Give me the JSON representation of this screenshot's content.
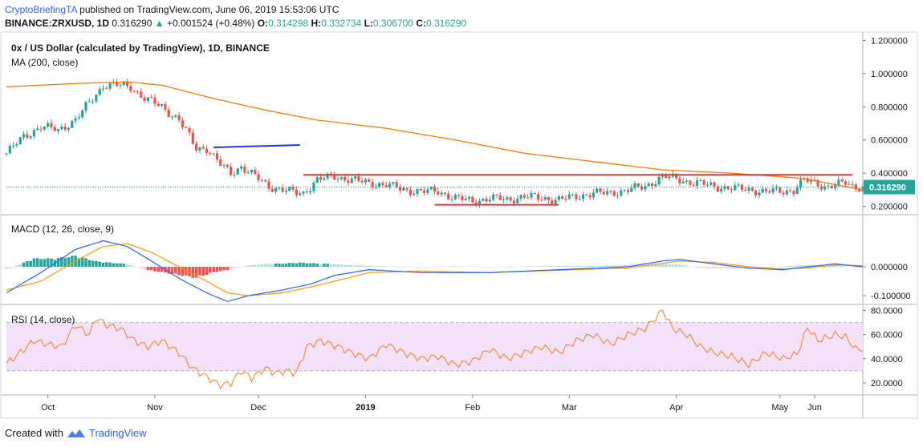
{
  "header": {
    "author": "CryptoBriefingTA",
    "published": " published on TradingView.com, June 06, 2019 15:53:06 UTC",
    "symbol": "BINANCE:ZRXUSD, 1D",
    "last": "0.316290",
    "change_arrow": "▲",
    "change": "+0.001524 (+0.48%)",
    "o_label": "O:",
    "o_value": "0.314298",
    "h_label": "H:",
    "h_value": "0.332734",
    "l_label": "L:",
    "l_value": "0.306700",
    "c_label": "C:",
    "c_value": "0.316290"
  },
  "footer": {
    "created_with": "Created with",
    "tv_brand": "TradingView",
    "logo_icon": "tradingview-logo-icon"
  },
  "colors": {
    "up": "#26a69a",
    "down": "#ef5350",
    "ma": "#f57c00",
    "resist": "#e53935",
    "trend": "#1e3cd6",
    "macd": "#2962ff",
    "signal": "#ff9800",
    "rsi": "#f57f17",
    "rsi_band": "#f3e1fa"
  },
  "chart_data": [
    {
      "type": "candlestick",
      "title": "0x / US Dollar (calculated by TradingView), 1D, BINANCE",
      "indicator": "MA (200, close)",
      "ylim": [
        0.15,
        1.25
      ],
      "y_ticks": [
        "1.200000",
        "1.000000",
        "0.800000",
        "0.600000",
        "0.400000",
        "0.200000"
      ],
      "last_price_label": "0.316290",
      "x_ticks": [
        "Oct",
        "Nov",
        "Dec",
        "2019",
        "Feb",
        "Mar",
        "Apr",
        "May",
        "Jun"
      ],
      "close_path": [
        [
          0,
          0.52
        ],
        [
          5,
          0.62
        ],
        [
          10,
          0.68
        ],
        [
          15,
          0.66
        ],
        [
          20,
          0.72
        ],
        [
          25,
          0.85
        ],
        [
          28,
          0.93
        ],
        [
          32,
          0.93
        ],
        [
          36,
          0.92
        ],
        [
          40,
          0.85
        ],
        [
          45,
          0.8
        ],
        [
          50,
          0.72
        ],
        [
          55,
          0.55
        ],
        [
          58,
          0.55
        ],
        [
          62,
          0.45
        ],
        [
          65,
          0.4
        ],
        [
          68,
          0.44
        ],
        [
          72,
          0.38
        ],
        [
          76,
          0.32
        ],
        [
          80,
          0.3
        ],
        [
          84,
          0.28
        ],
        [
          86,
          0.28
        ],
        [
          90,
          0.36
        ],
        [
          95,
          0.38
        ],
        [
          100,
          0.36
        ],
        [
          105,
          0.34
        ],
        [
          110,
          0.33
        ],
        [
          115,
          0.3
        ],
        [
          120,
          0.29
        ],
        [
          125,
          0.29
        ],
        [
          130,
          0.25
        ],
        [
          135,
          0.23
        ],
        [
          140,
          0.25
        ],
        [
          145,
          0.24
        ],
        [
          150,
          0.26
        ],
        [
          155,
          0.25
        ],
        [
          160,
          0.24
        ],
        [
          165,
          0.26
        ],
        [
          170,
          0.28
        ],
        [
          175,
          0.28
        ],
        [
          180,
          0.3
        ],
        [
          185,
          0.32
        ],
        [
          190,
          0.38
        ],
        [
          193,
          0.37
        ],
        [
          197,
          0.35
        ],
        [
          200,
          0.34
        ],
        [
          205,
          0.32
        ],
        [
          210,
          0.31
        ],
        [
          215,
          0.3
        ],
        [
          220,
          0.29
        ],
        [
          225,
          0.29
        ],
        [
          228,
          0.3
        ],
        [
          231,
          0.36
        ],
        [
          234,
          0.34
        ],
        [
          237,
          0.32
        ],
        [
          240,
          0.33
        ],
        [
          243,
          0.34
        ],
        [
          245,
          0.32
        ],
        [
          248,
          0.316
        ]
      ],
      "ma200": [
        [
          0,
          0.92
        ],
        [
          20,
          0.94
        ],
        [
          35,
          0.95
        ],
        [
          45,
          0.93
        ],
        [
          60,
          0.85
        ],
        [
          75,
          0.78
        ],
        [
          90,
          0.72
        ],
        [
          110,
          0.67
        ],
        [
          130,
          0.6
        ],
        [
          150,
          0.52
        ],
        [
          170,
          0.47
        ],
        [
          190,
          0.42
        ],
        [
          210,
          0.4
        ],
        [
          230,
          0.37
        ],
        [
          248,
          0.3
        ]
      ],
      "resistance": {
        "value": 0.39,
        "from": 86,
        "to": 245
      },
      "support": {
        "value": 0.21,
        "from": 124,
        "to": 160
      },
      "trendline": {
        "from": [
          60,
          0.555
        ],
        "to": [
          85,
          0.57
        ]
      }
    },
    {
      "type": "line",
      "title": "MACD (12, 26, close, 9)",
      "ylim": [
        -0.13,
        0.18
      ],
      "y_ticks": [
        "0.000000",
        "-0.100000"
      ],
      "macd": [
        [
          0,
          -0.09
        ],
        [
          10,
          -0.02
        ],
        [
          20,
          0.06
        ],
        [
          28,
          0.09
        ],
        [
          35,
          0.07
        ],
        [
          42,
          0.02
        ],
        [
          50,
          -0.04
        ],
        [
          58,
          -0.09
        ],
        [
          64,
          -0.12
        ],
        [
          70,
          -0.1
        ],
        [
          80,
          -0.08
        ],
        [
          88,
          -0.06
        ],
        [
          95,
          -0.03
        ],
        [
          105,
          -0.01
        ],
        [
          120,
          -0.02
        ],
        [
          140,
          -0.02
        ],
        [
          160,
          -0.01
        ],
        [
          180,
          0.0
        ],
        [
          190,
          0.02
        ],
        [
          195,
          0.025
        ],
        [
          205,
          0.01
        ],
        [
          215,
          -0.005
        ],
        [
          225,
          -0.01
        ],
        [
          232,
          0.0
        ],
        [
          240,
          0.01
        ],
        [
          248,
          0.0
        ]
      ],
      "signal": [
        [
          0,
          -0.08
        ],
        [
          10,
          -0.05
        ],
        [
          20,
          0.02
        ],
        [
          28,
          0.07
        ],
        [
          35,
          0.08
        ],
        [
          42,
          0.05
        ],
        [
          50,
          0.0
        ],
        [
          58,
          -0.05
        ],
        [
          64,
          -0.09
        ],
        [
          70,
          -0.1
        ],
        [
          80,
          -0.09
        ],
        [
          88,
          -0.07
        ],
        [
          95,
          -0.05
        ],
        [
          105,
          -0.02
        ],
        [
          120,
          -0.015
        ],
        [
          140,
          -0.02
        ],
        [
          160,
          -0.012
        ],
        [
          180,
          -0.004
        ],
        [
          190,
          0.012
        ],
        [
          195,
          0.02
        ],
        [
          205,
          0.015
        ],
        [
          215,
          0.0
        ],
        [
          225,
          -0.008
        ],
        [
          232,
          -0.004
        ],
        [
          240,
          0.006
        ],
        [
          248,
          0.004
        ]
      ],
      "hist": [
        [
          0,
          -0.01
        ],
        [
          8,
          0.03
        ],
        [
          14,
          0.03
        ],
        [
          20,
          0.04
        ],
        [
          26,
          0.02
        ],
        [
          30,
          0.015
        ],
        [
          35,
          0.01
        ],
        [
          40,
          -0.01
        ],
        [
          45,
          -0.02
        ],
        [
          50,
          -0.03
        ],
        [
          55,
          -0.04
        ],
        [
          60,
          -0.02
        ],
        [
          65,
          -0.01
        ],
        [
          70,
          0.005
        ],
        [
          75,
          0.01
        ],
        [
          80,
          0.012
        ],
        [
          85,
          0.015
        ],
        [
          90,
          0.012
        ],
        [
          95,
          0.01
        ],
        [
          100,
          0.006
        ],
        [
          110,
          0.002
        ],
        [
          120,
          -0.003
        ],
        [
          130,
          0.002
        ],
        [
          140,
          -0.002
        ],
        [
          150,
          0.002
        ],
        [
          160,
          0.003
        ],
        [
          170,
          0.004
        ],
        [
          180,
          0.006
        ],
        [
          190,
          0.01
        ],
        [
          195,
          0.008
        ],
        [
          200,
          -0.004
        ],
        [
          210,
          -0.006
        ],
        [
          220,
          -0.002
        ],
        [
          230,
          0.006
        ],
        [
          240,
          0.004
        ],
        [
          247,
          -0.003
        ]
      ]
    },
    {
      "type": "line",
      "title": "RSI (14, close)",
      "ylim": [
        10,
        85
      ],
      "band": [
        30,
        70
      ],
      "y_ticks": [
        "80.0000",
        "60.0000",
        "40.0000",
        "20.0000"
      ],
      "rsi": [
        [
          0,
          36
        ],
        [
          4,
          45
        ],
        [
          8,
          55
        ],
        [
          12,
          52
        ],
        [
          16,
          50
        ],
        [
          20,
          68
        ],
        [
          24,
          60
        ],
        [
          26,
          74
        ],
        [
          29,
          68
        ],
        [
          33,
          65
        ],
        [
          37,
          55
        ],
        [
          41,
          50
        ],
        [
          45,
          55
        ],
        [
          50,
          45
        ],
        [
          54,
          32
        ],
        [
          58,
          25
        ],
        [
          62,
          18
        ],
        [
          65,
          20
        ],
        [
          68,
          30
        ],
        [
          71,
          24
        ],
        [
          75,
          32
        ],
        [
          78,
          28
        ],
        [
          81,
          30
        ],
        [
          84,
          28
        ],
        [
          87,
          50
        ],
        [
          91,
          55
        ],
        [
          96,
          50
        ],
        [
          100,
          45
        ],
        [
          105,
          40
        ],
        [
          110,
          52
        ],
        [
          115,
          45
        ],
        [
          120,
          40
        ],
        [
          125,
          42
        ],
        [
          130,
          35
        ],
        [
          135,
          38
        ],
        [
          140,
          48
        ],
        [
          145,
          40
        ],
        [
          150,
          45
        ],
        [
          155,
          50
        ],
        [
          160,
          45
        ],
        [
          165,
          55
        ],
        [
          170,
          60
        ],
        [
          175,
          52
        ],
        [
          180,
          60
        ],
        [
          185,
          65
        ],
        [
          190,
          80
        ],
        [
          193,
          65
        ],
        [
          197,
          60
        ],
        [
          201,
          50
        ],
        [
          205,
          45
        ],
        [
          210,
          42
        ],
        [
          215,
          35
        ],
        [
          220,
          45
        ],
        [
          225,
          40
        ],
        [
          229,
          44
        ],
        [
          232,
          66
        ],
        [
          235,
          55
        ],
        [
          240,
          60
        ],
        [
          243,
          58
        ],
        [
          246,
          48
        ],
        [
          248,
          48
        ]
      ]
    }
  ]
}
